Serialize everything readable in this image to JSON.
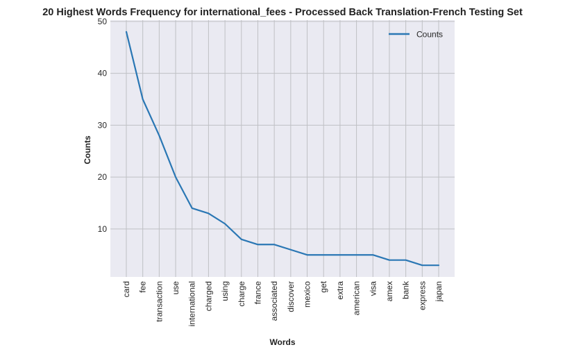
{
  "chart_data": {
    "type": "line",
    "title": "20 Highest Words Frequency for international_fees - Processed Back Translation-French Testing Set",
    "xlabel": "Words",
    "ylabel": "Counts",
    "categories": [
      "card",
      "fee",
      "transaction",
      "use",
      "international",
      "charged",
      "using",
      "charge",
      "france",
      "associated",
      "discover",
      "mexico",
      "get",
      "extra",
      "american",
      "visa",
      "amex",
      "bank",
      "express",
      "japan"
    ],
    "series": [
      {
        "name": "Counts",
        "values": [
          48,
          35,
          28,
          20,
          14,
          13,
          11,
          8,
          7,
          7,
          6,
          5,
          5,
          5,
          5,
          5,
          4,
          4,
          3,
          3
        ]
      }
    ],
    "yticks": [
      10,
      20,
      30,
      40,
      50
    ],
    "ylim": [
      0.75,
      50.25
    ],
    "grid": true,
    "legend_position": "top-right",
    "colors": {
      "line": "#2a77b4",
      "plot_background": "#eaeaf2",
      "grid": "#bfc0c4"
    }
  }
}
